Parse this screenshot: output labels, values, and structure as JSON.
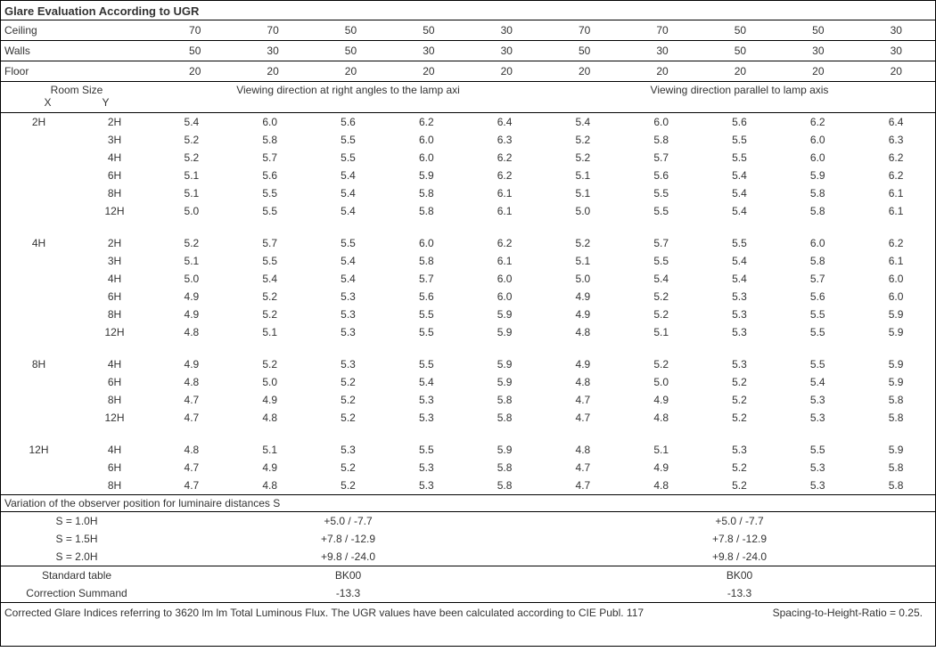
{
  "title": "Glare Evaluation According to UGR",
  "reflectance_rows": [
    {
      "label": "Ceiling",
      "vals": [
        "70",
        "70",
        "50",
        "50",
        "30",
        "70",
        "70",
        "50",
        "50",
        "30"
      ]
    },
    {
      "label": "Walls",
      "vals": [
        "50",
        "30",
        "50",
        "30",
        "30",
        "50",
        "30",
        "50",
        "30",
        "30"
      ]
    },
    {
      "label": "Floor",
      "vals": [
        "20",
        "20",
        "20",
        "20",
        "20",
        "20",
        "20",
        "20",
        "20",
        "20"
      ]
    }
  ],
  "room_size_label": "Room Size",
  "x_label": "X",
  "y_label": "Y",
  "view_headers": {
    "left": "Viewing direction at right angles to the lamp axi",
    "right": "Viewing direction parallel to lamp axis"
  },
  "groups": [
    {
      "x": "2H",
      "rows": [
        {
          "y": "2H",
          "l": [
            "5.4",
            "6.0",
            "5.6",
            "6.2",
            "6.4"
          ],
          "r": [
            "5.4",
            "6.0",
            "5.6",
            "6.2",
            "6.4"
          ]
        },
        {
          "y": "3H",
          "l": [
            "5.2",
            "5.8",
            "5.5",
            "6.0",
            "6.3"
          ],
          "r": [
            "5.2",
            "5.8",
            "5.5",
            "6.0",
            "6.3"
          ]
        },
        {
          "y": "4H",
          "l": [
            "5.2",
            "5.7",
            "5.5",
            "6.0",
            "6.2"
          ],
          "r": [
            "5.2",
            "5.7",
            "5.5",
            "6.0",
            "6.2"
          ]
        },
        {
          "y": "6H",
          "l": [
            "5.1",
            "5.6",
            "5.4",
            "5.9",
            "6.2"
          ],
          "r": [
            "5.1",
            "5.6",
            "5.4",
            "5.9",
            "6.2"
          ]
        },
        {
          "y": "8H",
          "l": [
            "5.1",
            "5.5",
            "5.4",
            "5.8",
            "6.1"
          ],
          "r": [
            "5.1",
            "5.5",
            "5.4",
            "5.8",
            "6.1"
          ]
        },
        {
          "y": "12H",
          "l": [
            "5.0",
            "5.5",
            "5.4",
            "5.8",
            "6.1"
          ],
          "r": [
            "5.0",
            "5.5",
            "5.4",
            "5.8",
            "6.1"
          ]
        }
      ]
    },
    {
      "x": "4H",
      "rows": [
        {
          "y": "2H",
          "l": [
            "5.2",
            "5.7",
            "5.5",
            "6.0",
            "6.2"
          ],
          "r": [
            "5.2",
            "5.7",
            "5.5",
            "6.0",
            "6.2"
          ]
        },
        {
          "y": "3H",
          "l": [
            "5.1",
            "5.5",
            "5.4",
            "5.8",
            "6.1"
          ],
          "r": [
            "5.1",
            "5.5",
            "5.4",
            "5.8",
            "6.1"
          ]
        },
        {
          "y": "4H",
          "l": [
            "5.0",
            "5.4",
            "5.4",
            "5.7",
            "6.0"
          ],
          "r": [
            "5.0",
            "5.4",
            "5.4",
            "5.7",
            "6.0"
          ]
        },
        {
          "y": "6H",
          "l": [
            "4.9",
            "5.2",
            "5.3",
            "5.6",
            "6.0"
          ],
          "r": [
            "4.9",
            "5.2",
            "5.3",
            "5.6",
            "6.0"
          ]
        },
        {
          "y": "8H",
          "l": [
            "4.9",
            "5.2",
            "5.3",
            "5.5",
            "5.9"
          ],
          "r": [
            "4.9",
            "5.2",
            "5.3",
            "5.5",
            "5.9"
          ]
        },
        {
          "y": "12H",
          "l": [
            "4.8",
            "5.1",
            "5.3",
            "5.5",
            "5.9"
          ],
          "r": [
            "4.8",
            "5.1",
            "5.3",
            "5.5",
            "5.9"
          ]
        }
      ]
    },
    {
      "x": "8H",
      "rows": [
        {
          "y": "4H",
          "l": [
            "4.9",
            "5.2",
            "5.3",
            "5.5",
            "5.9"
          ],
          "r": [
            "4.9",
            "5.2",
            "5.3",
            "5.5",
            "5.9"
          ]
        },
        {
          "y": "6H",
          "l": [
            "4.8",
            "5.0",
            "5.2",
            "5.4",
            "5.9"
          ],
          "r": [
            "4.8",
            "5.0",
            "5.2",
            "5.4",
            "5.9"
          ]
        },
        {
          "y": "8H",
          "l": [
            "4.7",
            "4.9",
            "5.2",
            "5.3",
            "5.8"
          ],
          "r": [
            "4.7",
            "4.9",
            "5.2",
            "5.3",
            "5.8"
          ]
        },
        {
          "y": "12H",
          "l": [
            "4.7",
            "4.8",
            "5.2",
            "5.3",
            "5.8"
          ],
          "r": [
            "4.7",
            "4.8",
            "5.2",
            "5.3",
            "5.8"
          ]
        }
      ]
    },
    {
      "x": "12H",
      "rows": [
        {
          "y": "4H",
          "l": [
            "4.8",
            "5.1",
            "5.3",
            "5.5",
            "5.9"
          ],
          "r": [
            "4.8",
            "5.1",
            "5.3",
            "5.5",
            "5.9"
          ]
        },
        {
          "y": "6H",
          "l": [
            "4.7",
            "4.9",
            "5.2",
            "5.3",
            "5.8"
          ],
          "r": [
            "4.7",
            "4.9",
            "5.2",
            "5.3",
            "5.8"
          ]
        },
        {
          "y": "8H",
          "l": [
            "4.7",
            "4.8",
            "5.2",
            "5.3",
            "5.8"
          ],
          "r": [
            "4.7",
            "4.8",
            "5.2",
            "5.3",
            "5.8"
          ]
        }
      ]
    }
  ],
  "variation_label": "Variation of the observer position for luminaire distances S",
  "variation_rows": [
    {
      "s": "S = 1.0H",
      "l": "+5.0 / -7.7",
      "r": "+5.0 / -7.7"
    },
    {
      "s": "S = 1.5H",
      "l": "+7.8 / -12.9",
      "r": "+7.8 / -12.9"
    },
    {
      "s": "S = 2.0H",
      "l": "+9.8 / -24.0",
      "r": "+9.8 / -24.0"
    }
  ],
  "std_rows": [
    {
      "s": "Standard table",
      "l": "BK00",
      "r": "BK00"
    },
    {
      "s": "Correction Summand",
      "l": "-13.3",
      "r": "-13.3"
    }
  ],
  "footer_text": "Corrected Glare Indices referring to 3620 lm lm Total Luminous Flux. The UGR values have been calculated according to CIE Publ. 117",
  "spacing_ratio": "Spacing-to-Height-Ratio = 0.25.",
  "layout": {
    "col_width_label": 170,
    "data_columns_per_side": 5,
    "font_size_body": 12,
    "font_size_title": 13,
    "border_color": "#000000",
    "text_color": "#333333",
    "background_color": "#ffffff"
  }
}
